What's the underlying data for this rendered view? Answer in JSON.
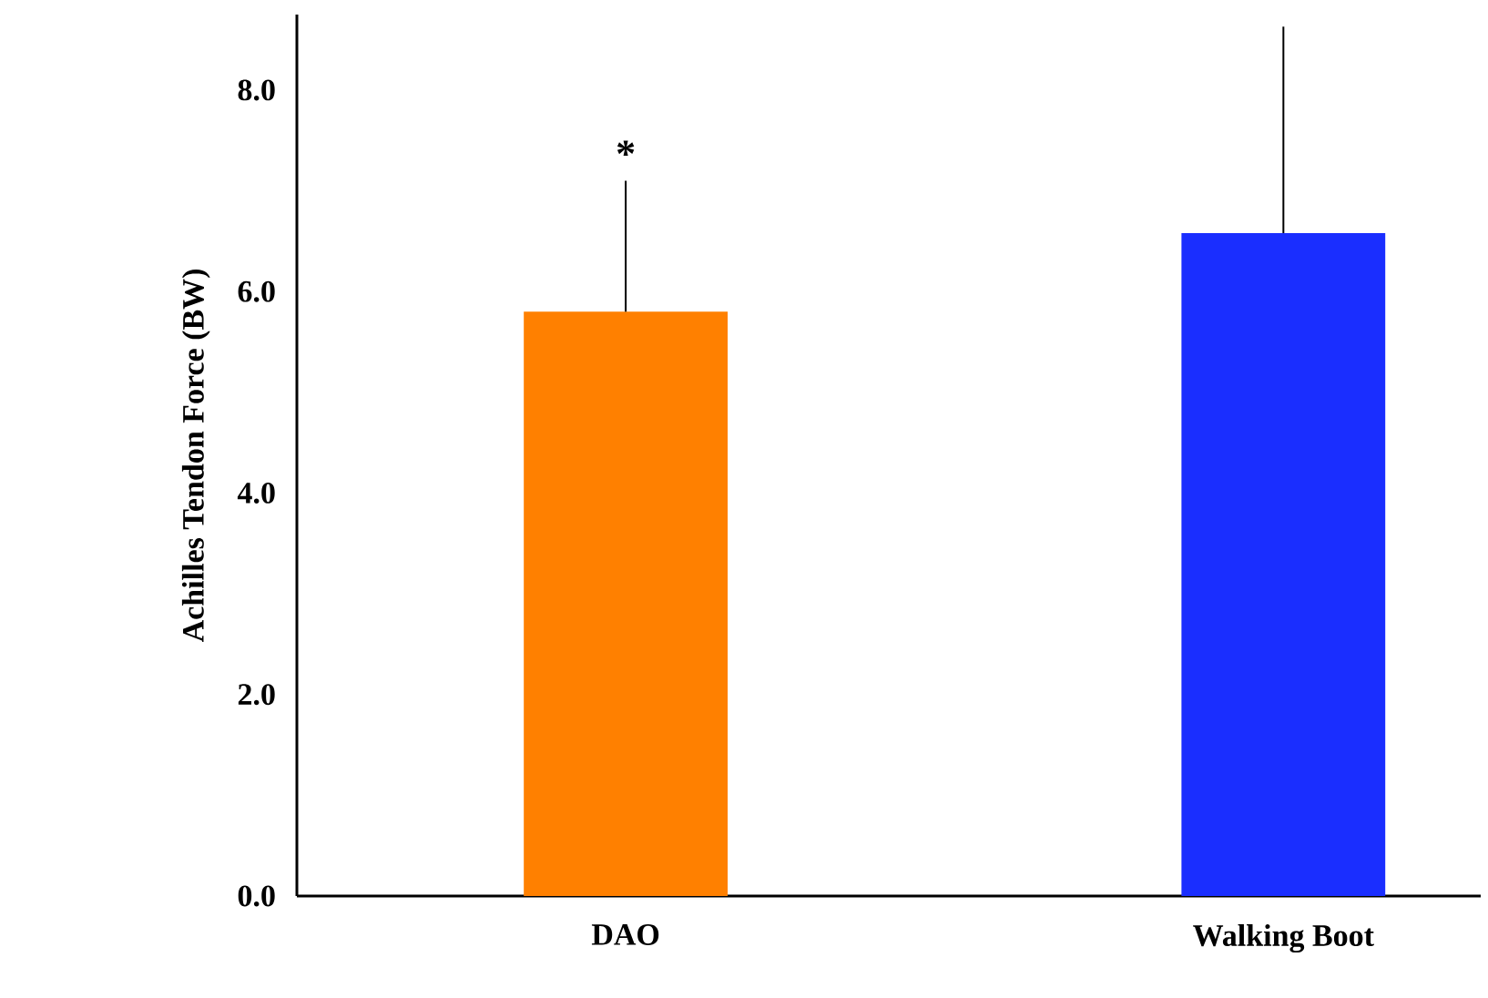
{
  "chart_data": {
    "type": "bar",
    "ylabel": "Achilles Tendon  Force (BW)",
    "categories": [
      "DAO",
      "Walking Boot"
    ],
    "values": [
      5.8,
      6.58
    ],
    "colors": [
      "#ff8000",
      "#1a2eff"
    ],
    "errors": [
      [
        5.8,
        7.1
      ],
      [
        6.58,
        8.63
      ]
    ],
    "ylim": [
      0,
      8.75
    ],
    "yticks": [
      {
        "value": 0,
        "label": "0.0"
      },
      {
        "value": 2,
        "label": "2.0"
      },
      {
        "value": 4,
        "label": "4.0"
      },
      {
        "value": 6,
        "label": "6.0"
      },
      {
        "value": 8,
        "label": "8.0"
      }
    ],
    "annotations": [
      "*"
    ],
    "grid": false
  }
}
